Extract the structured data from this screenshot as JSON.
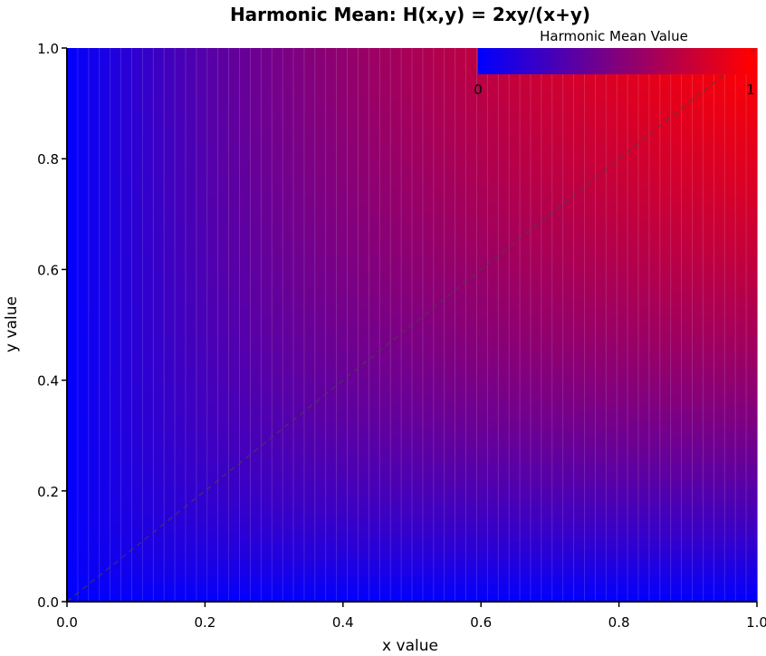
{
  "chart_data": {
    "type": "heatmap",
    "title": "Harmonic Mean: H(x,y) = 2xy/(x+y)",
    "xlabel": "x value",
    "ylabel": "y value",
    "xlim": [
      0,
      1
    ],
    "ylim": [
      0,
      1
    ],
    "x_ticks": [
      "0.0",
      "0.2",
      "0.4",
      "0.6",
      "0.8",
      "1.0"
    ],
    "y_ticks": [
      "0.0",
      "0.2",
      "0.4",
      "0.6",
      "0.8",
      "1.0"
    ],
    "grid_cells": 64,
    "function": "2xy/(x+y)",
    "colormap": {
      "low": "#0000ff",
      "high": "#ff0000"
    },
    "value_range": [
      0,
      1
    ],
    "reference_line": {
      "from": [
        0,
        0
      ],
      "to": [
        1,
        1
      ],
      "style": "dashed"
    },
    "colorbar": {
      "title": "Harmonic Mean Value",
      "min_label": "0",
      "max_label": "1",
      "placement": "top-right"
    },
    "grid": false
  }
}
